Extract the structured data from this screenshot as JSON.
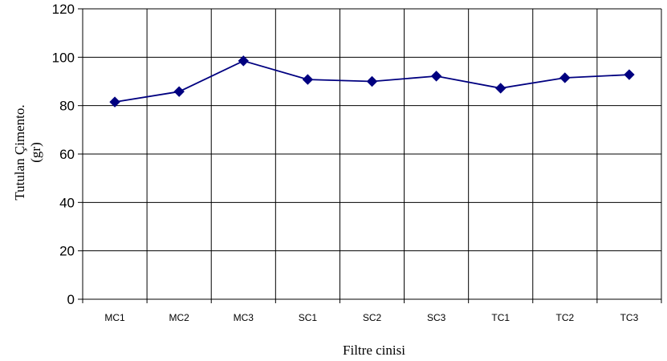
{
  "chart_data": {
    "type": "line",
    "title": "",
    "xlabel": "Filtre cinisi",
    "ylabel_lines": [
      "Tutulan Çimento.",
      "(gr)"
    ],
    "categories": [
      "MC1",
      "MC2",
      "MC3",
      "SC1",
      "SC2",
      "SC3",
      "TC1",
      "TC2",
      "TC3"
    ],
    "series": [
      {
        "values": [
          81.5,
          85.8,
          98.5,
          90.8,
          90.0,
          92.2,
          87.2,
          91.5,
          92.8
        ]
      }
    ],
    "ylim": [
      0,
      120
    ],
    "y_ticks": [
      0,
      20,
      40,
      60,
      80,
      100,
      120
    ],
    "grid": true,
    "legend": "none",
    "colors": {
      "line": "#000080",
      "marker": "#000080",
      "grid": "#000000",
      "axis": "#000000"
    }
  }
}
